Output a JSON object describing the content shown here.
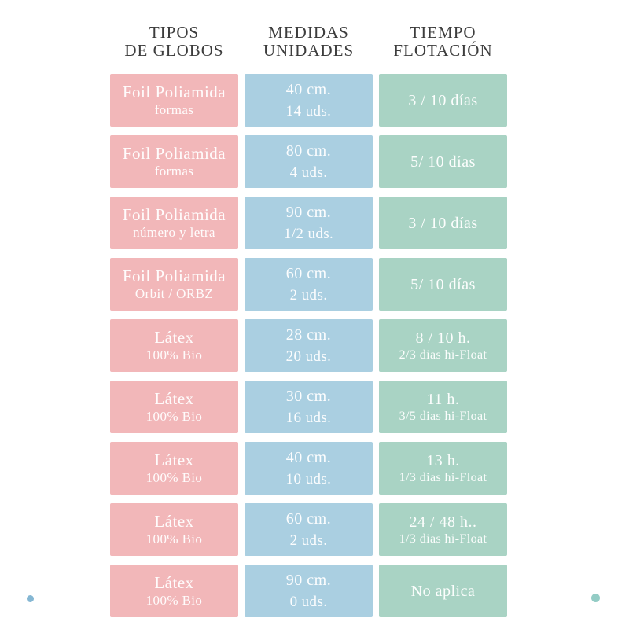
{
  "page": {
    "background": "#ffffff"
  },
  "colors": {
    "tipo": "#f2b7b9",
    "medida": "#aacfe1",
    "tiempo": "#a9d3c4",
    "header_text": "#3d3d3d",
    "cell_text": "#ffffff",
    "left_dot": "#85b7d3",
    "right_dot": "#93ccc5"
  },
  "table": {
    "headers": [
      {
        "line1": "TIPOS",
        "line2": "DE GLOBOS"
      },
      {
        "line1": "MEDIDAS",
        "line2": "UNIDADES"
      },
      {
        "line1": "TIEMPO",
        "line2": "FLOTACIÓN"
      }
    ],
    "rows": [
      {
        "tipo": [
          "Foil Poliamida",
          "formas"
        ],
        "medida": [
          "40 cm.",
          "14 uds."
        ],
        "tiempo": [
          "3 / 10 días"
        ]
      },
      {
        "tipo": [
          "Foil Poliamida",
          "formas"
        ],
        "medida": [
          "80 cm.",
          "4 uds."
        ],
        "tiempo": [
          "5/ 10 días"
        ]
      },
      {
        "tipo": [
          "Foil Poliamida",
          "número y letra"
        ],
        "medida": [
          "90 cm.",
          "1/2 uds."
        ],
        "tiempo": [
          "3 / 10 días"
        ]
      },
      {
        "tipo": [
          "Foil Poliamida",
          "Orbit / ORBZ"
        ],
        "medida": [
          "60 cm.",
          "2 uds."
        ],
        "tiempo": [
          "5/ 10 días"
        ]
      },
      {
        "tipo": [
          "Látex",
          "100% Bio"
        ],
        "medida": [
          "28 cm.",
          "20 uds."
        ],
        "tiempo": [
          "8 / 10 h.",
          "2/3 dias hi-Float"
        ]
      },
      {
        "tipo": [
          "Látex",
          "100% Bio"
        ],
        "medida": [
          "30 cm.",
          "16 uds."
        ],
        "tiempo": [
          "11 h.",
          "3/5 dias hi-Float"
        ]
      },
      {
        "tipo": [
          "Látex",
          "100% Bio"
        ],
        "medida": [
          "40 cm.",
          "10 uds."
        ],
        "tiempo": [
          "13 h.",
          "1/3 dias hi-Float"
        ]
      },
      {
        "tipo": [
          "Látex",
          "100% Bio"
        ],
        "medida": [
          "60 cm.",
          "2 uds."
        ],
        "tiempo": [
          "24 / 48 h..",
          "1/3 dias hi-Float"
        ]
      },
      {
        "tipo": [
          "Látex",
          "100% Bio"
        ],
        "medida": [
          "90 cm.",
          "0 uds."
        ],
        "tiempo": [
          "No aplica"
        ]
      }
    ]
  }
}
